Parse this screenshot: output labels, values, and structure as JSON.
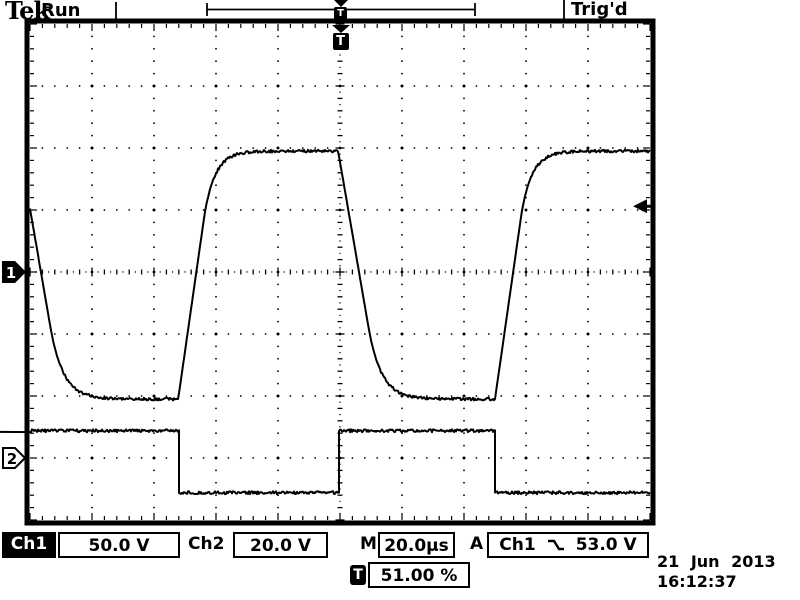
{
  "header": {
    "logo": "Tek",
    "acquisition_status": "Run",
    "trigger_status": "Trig'd"
  },
  "record_view": {
    "trigger_position_marker": "T"
  },
  "display": {
    "trigger_position_indicator": "T"
  },
  "channel_markers": {
    "ch1": "1",
    "ch2": "2"
  },
  "readouts": {
    "ch1_label": "Ch1",
    "ch1_scale": "50.0 V",
    "ch2_label": "Ch2",
    "ch2_scale": "20.0 V",
    "timebase_label": "M",
    "timebase": "20.0µs",
    "trigger_mode_label": "A",
    "trigger_source": "Ch1",
    "trigger_level": "53.0 V",
    "trigger_edge_icon": "falling-edge"
  },
  "footer": {
    "trigger_marker": "T",
    "trigger_position": "51.00 %"
  },
  "datetime": {
    "date": "21 Jun 2013",
    "time": "16:12:37"
  },
  "colors": {
    "foreground": "#000000",
    "background": "#ffffff"
  },
  "chart_data": {
    "type": "line",
    "instrument": "oscilloscope-display",
    "timebase_us_per_div": 20.0,
    "divisions": {
      "horizontal": 10,
      "vertical": 8
    },
    "grid": "dotted-major-with-center-tick-axes",
    "trigger": {
      "source": "Ch1",
      "slope": "falling",
      "level_V": 53.0,
      "level_div_from_center": 1.06,
      "position_pct": 51.0
    },
    "series": [
      {
        "name": "Ch1",
        "volts_per_div": 50.0,
        "ground_div_from_center": 0.0,
        "high_div_from_center": 1.95,
        "low_div_from_center": -2.05,
        "high_V": 97.5,
        "low_V": -102.5,
        "period_us": 103.0,
        "edge_style": "rc",
        "edges": [
          {
            "t_div": -0.16,
            "type": "fall"
          },
          {
            "t_div": 2.39,
            "type": "rise"
          },
          {
            "t_div": 4.97,
            "type": "fall"
          },
          {
            "t_div": 7.5,
            "type": "rise"
          }
        ]
      },
      {
        "name": "Ch2",
        "volts_per_div": 20.0,
        "ground_div_from_center": -3.0,
        "high_div_from_center": -2.56,
        "low_div_from_center": -3.56,
        "high_V": 8.8,
        "low_V": -11.2,
        "period_us": 103.0,
        "edge_style": "sharp",
        "edges": [
          {
            "t_div": -0.16,
            "type": "rise"
          },
          {
            "t_div": 2.39,
            "type": "fall"
          },
          {
            "t_div": 4.97,
            "type": "rise"
          },
          {
            "t_div": 7.5,
            "type": "fall"
          }
        ]
      }
    ]
  }
}
